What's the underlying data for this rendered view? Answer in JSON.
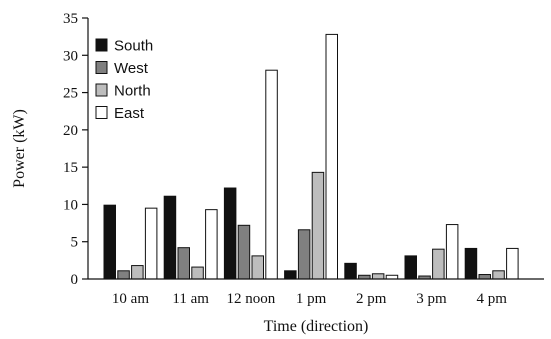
{
  "chart_data": {
    "type": "bar",
    "title": "",
    "xlabel": "Time (direction)",
    "ylabel": "Power (kW)",
    "ylim": [
      0,
      35
    ],
    "yticks": [
      "0",
      "5",
      "10",
      "15",
      "20",
      "25",
      "30",
      "35"
    ],
    "categories": [
      "10 am",
      "11 am",
      "12 noon",
      "1 pm",
      "2 pm",
      "3 pm",
      "4 pm"
    ],
    "legend_position": "top-left",
    "grid": false,
    "series": [
      {
        "name": "South",
        "color": "#111111",
        "values": [
          9.9,
          11.1,
          12.2,
          1.1,
          2.1,
          3.1,
          4.1
        ]
      },
      {
        "name": "West",
        "color": "#808080",
        "values": [
          1.1,
          4.2,
          7.2,
          6.6,
          0.5,
          0.4,
          0.6
        ]
      },
      {
        "name": "North",
        "color": "#bdbdbd",
        "values": [
          1.8,
          1.6,
          3.1,
          14.3,
          0.7,
          4.0,
          1.1
        ]
      },
      {
        "name": "East",
        "color": "#ffffff",
        "values": [
          9.5,
          9.3,
          28.0,
          32.8,
          0.5,
          7.3,
          4.1
        ]
      }
    ]
  }
}
